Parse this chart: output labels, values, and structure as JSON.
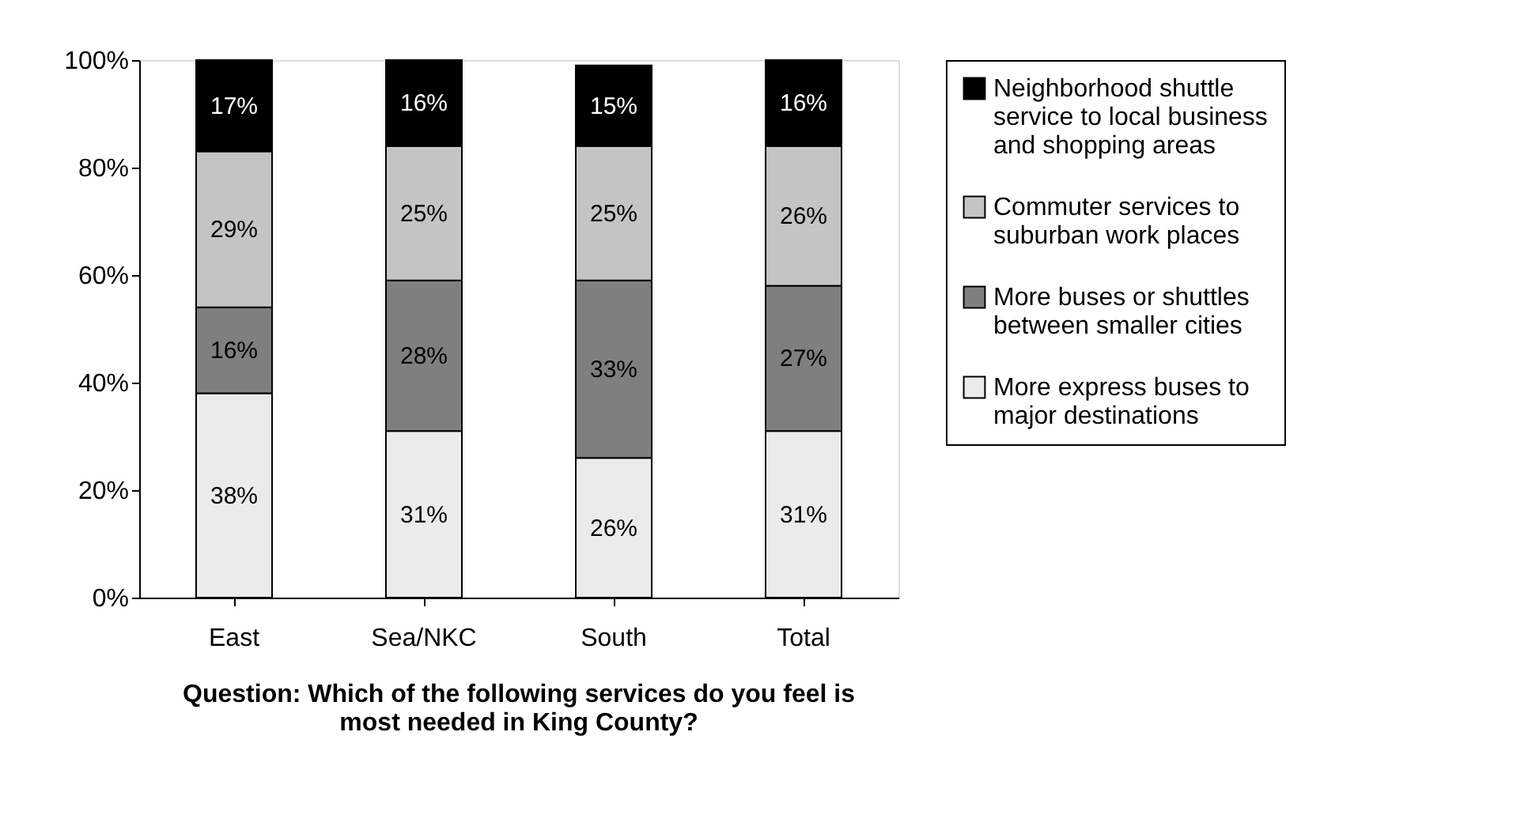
{
  "chart_data": {
    "type": "bar",
    "stacked": true,
    "title": "Question: Which of the following services do you feel is most needed in King County?",
    "categories": [
      "East",
      "Sea/NKC",
      "South",
      "Total"
    ],
    "series": [
      {
        "name": "More express buses to major destinations",
        "color": "#ebebeb",
        "values": [
          38,
          31,
          26,
          31
        ],
        "value_labels": [
          "38%",
          "31%",
          "26%",
          "31%"
        ]
      },
      {
        "name": "More buses or shuttles between smaller cities",
        "color": "#7f7f7f",
        "values": [
          16,
          28,
          33,
          27
        ],
        "value_labels": [
          "16%",
          "28%",
          "33%",
          "27%"
        ]
      },
      {
        "name": "Commuter services to suburban work places",
        "color": "#c4c4c4",
        "values": [
          29,
          25,
          25,
          26
        ],
        "value_labels": [
          "29%",
          "25%",
          "25%",
          "26%"
        ]
      },
      {
        "name": "Neighborhood shuttle service to local business and shopping areas",
        "color": "#000000",
        "values": [
          17,
          16,
          15,
          16
        ],
        "value_labels": [
          "17%",
          "16%",
          "15%",
          "16%"
        ]
      }
    ],
    "ylim": [
      0,
      100
    ],
    "yticks": [
      {
        "value": 0,
        "label": "0%"
      },
      {
        "value": 20,
        "label": "20%"
      },
      {
        "value": 40,
        "label": "40%"
      },
      {
        "value": 60,
        "label": "60%"
      },
      {
        "value": 80,
        "label": "80%"
      },
      {
        "value": 100,
        "label": "100%"
      }
    ],
    "legend": "right",
    "grid": false
  }
}
